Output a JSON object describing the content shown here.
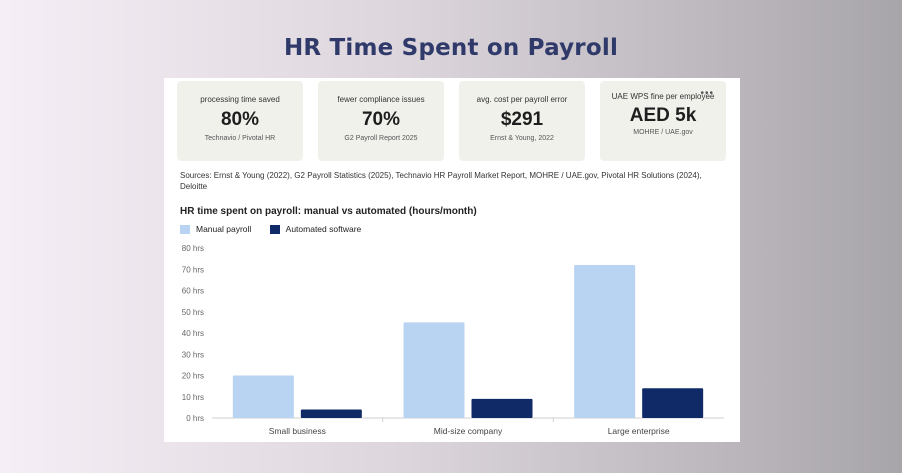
{
  "page": {
    "title": "HR Time Spent on Payroll"
  },
  "stats": [
    {
      "label": "processing time saved",
      "value": "80%",
      "source": "Technavio / Pivotal HR"
    },
    {
      "label": "fewer compliance issues",
      "value": "70%",
      "source": "G2 Payroll Report 2025"
    },
    {
      "label": "avg. cost per payroll error",
      "value": "$291",
      "source": "Ernst & Young, 2022"
    },
    {
      "label": "UAE WPS fine per employee",
      "value": "AED 5k",
      "source": "MOHRE / UAE.gov",
      "menu_icon": "more-horizontal-icon"
    }
  ],
  "sources_text": "Sources: Ernst & Young (2022), G2 Payroll Statistics (2025), Technavio HR Payroll Market Report, MOHRE / UAE.gov, Pivotal HR Solutions (2024), Deloitte",
  "colors": {
    "manual": "#b9d3f3",
    "automated": "#0f2a66",
    "title": "#2f3a6b"
  },
  "chart_data": {
    "type": "bar",
    "title": "HR time spent on payroll: manual vs automated (hours/month)",
    "categories": [
      "Small business",
      "Mid-size company",
      "Large enterprise"
    ],
    "series": [
      {
        "name": "Manual payroll",
        "values": [
          20,
          45,
          72
        ]
      },
      {
        "name": "Automated software",
        "values": [
          4,
          9,
          14
        ]
      }
    ],
    "yticks": [
      "0 hrs",
      "10 hrs",
      "20 hrs",
      "30 hrs",
      "40 hrs",
      "50 hrs",
      "60 hrs",
      "70 hrs",
      "80 hrs"
    ],
    "ylim": [
      0,
      80
    ],
    "grid": false,
    "legend": "top-left"
  }
}
